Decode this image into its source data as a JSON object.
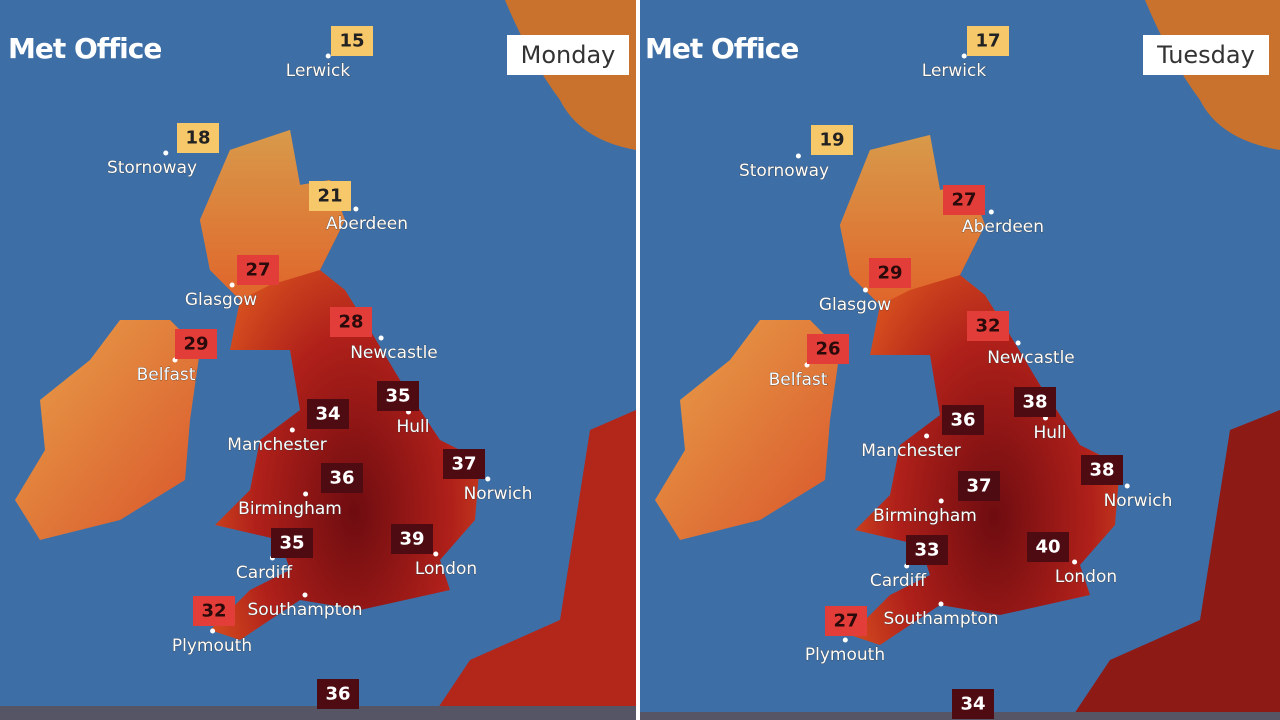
{
  "panels": [
    {
      "logo": "Met Office",
      "day": "Monday",
      "cities": [
        {
          "name": "Lerwick",
          "temp": 15
        },
        {
          "name": "Stornoway",
          "temp": 18
        },
        {
          "name": "Aberdeen",
          "temp": 21
        },
        {
          "name": "Glasgow",
          "temp": 27
        },
        {
          "name": "Newcastle",
          "temp": 28
        },
        {
          "name": "Belfast",
          "temp": 29
        },
        {
          "name": "Hull",
          "temp": 35
        },
        {
          "name": "Manchester",
          "temp": 34
        },
        {
          "name": "Norwich",
          "temp": 37
        },
        {
          "name": "Birmingham",
          "temp": 36
        },
        {
          "name": "Cardiff",
          "temp": 35
        },
        {
          "name": "London",
          "temp": 39
        },
        {
          "name": "Southampton"
        },
        {
          "name": "Plymouth",
          "temp": 32
        },
        {
          "temp": 36
        }
      ]
    },
    {
      "logo": "Met Office",
      "day": "Tuesday",
      "cities": [
        {
          "name": "Lerwick",
          "temp": 17
        },
        {
          "name": "Stornoway",
          "temp": 19
        },
        {
          "name": "Aberdeen",
          "temp": 27
        },
        {
          "name": "Glasgow",
          "temp": 29
        },
        {
          "name": "Newcastle",
          "temp": 32
        },
        {
          "name": "Belfast",
          "temp": 26
        },
        {
          "name": "Hull",
          "temp": 38
        },
        {
          "name": "Manchester",
          "temp": 36
        },
        {
          "name": "Norwich",
          "temp": 38
        },
        {
          "name": "Birmingham",
          "temp": 37
        },
        {
          "name": "Cardiff",
          "temp": 33
        },
        {
          "name": "London",
          "temp": 40
        },
        {
          "name": "Southampton"
        },
        {
          "name": "Plymouth",
          "temp": 27
        },
        {
          "temp": 34
        }
      ]
    }
  ]
}
